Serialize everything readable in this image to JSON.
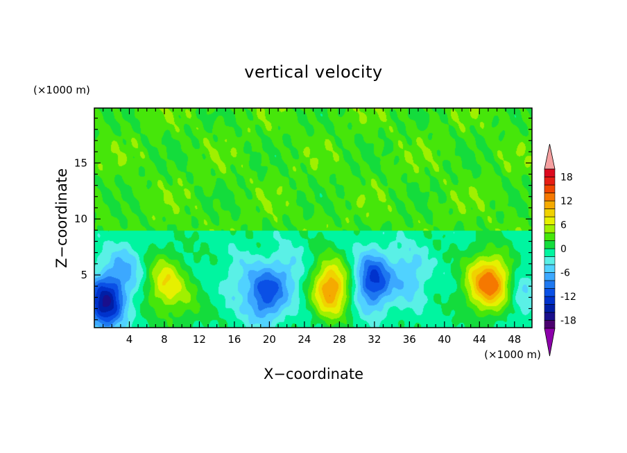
{
  "chart_data": {
    "type": "heatmap",
    "title": "vertical velocity",
    "xlabel": "X−coordinate",
    "ylabel": "Z−coordinate",
    "x_unit": "(×1000 m)",
    "y_unit": "(×1000 m)",
    "xlim": [
      0,
      50
    ],
    "ylim": [
      0.3,
      19.9
    ],
    "x_ticks": [
      4,
      8,
      12,
      16,
      20,
      24,
      28,
      32,
      36,
      40,
      44,
      48
    ],
    "y_ticks": [
      5,
      10,
      15
    ],
    "colorbar": {
      "levels": [
        -20,
        -18,
        -16,
        -14,
        -12,
        -10,
        -8,
        -6,
        -4,
        -2,
        0,
        2,
        4,
        6,
        8,
        10,
        12,
        14,
        16,
        18,
        20
      ],
      "labels": [
        18,
        12,
        6,
        0,
        -6,
        -12,
        -18
      ],
      "colors": [
        "#4b006e",
        "#1a0f8c",
        "#001ea6",
        "#0032cc",
        "#0a50e6",
        "#1e78f0",
        "#3ca8ff",
        "#50d2ff",
        "#5af0e6",
        "#00f5a0",
        "#14dc3c",
        "#46e60a",
        "#a0f000",
        "#e6f000",
        "#f0d200",
        "#f5aa00",
        "#f57800",
        "#f04600",
        "#e61e14",
        "#dc0a1e"
      ],
      "under_color": "#8c00aa",
      "over_color": "#f5a0a0"
    },
    "features": [
      {
        "x": 1.2,
        "z": 2.5,
        "value": -15
      },
      {
        "x": 3.5,
        "z": 5.5,
        "value": -5
      },
      {
        "x": 8.0,
        "z": 4.3,
        "value": 8
      },
      {
        "x": 10.5,
        "z": 2.5,
        "value": 3
      },
      {
        "x": 16.5,
        "z": 4.5,
        "value": -3
      },
      {
        "x": 19.5,
        "z": 3.2,
        "value": -10
      },
      {
        "x": 22.0,
        "z": 5.0,
        "value": -4
      },
      {
        "x": 27.0,
        "z": 3.8,
        "value": 13
      },
      {
        "x": 31.8,
        "z": 4.5,
        "value": -12
      },
      {
        "x": 36.0,
        "z": 5.0,
        "value": -5
      },
      {
        "x": 44.0,
        "z": 4.3,
        "value": 8
      },
      {
        "x": 46.0,
        "z": 4.3,
        "value": 10
      },
      {
        "x": 48.5,
        "z": 3.5,
        "value": -4
      }
    ]
  }
}
